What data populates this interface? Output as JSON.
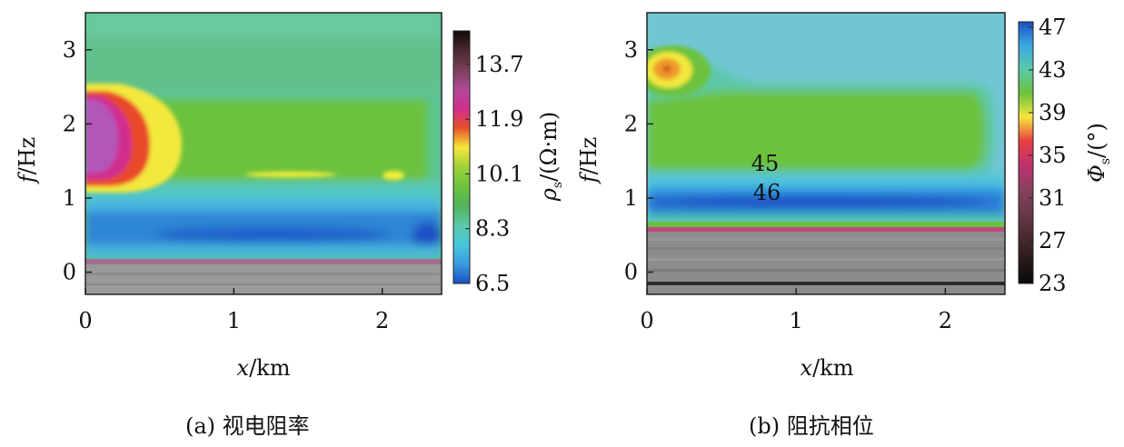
{
  "chart_data": [
    {
      "type": "heatmap",
      "panel_label": "(a)",
      "caption": "(a) 视电阻率",
      "xlabel_var": "x",
      "xlabel_unit": "/km",
      "ylabel_var": "f",
      "ylabel_unit": "/Hz",
      "x_ticks": [
        "0",
        "1",
        "2"
      ],
      "y_ticks": [
        "0",
        "1",
        "2",
        "3"
      ],
      "xlim": [
        0,
        2.4
      ],
      "ylim": [
        -0.3,
        3.5
      ],
      "colorbar": {
        "title_var": "ρ",
        "title_sub": "s",
        "title_unit": "/(Ω·m)",
        "ticks": [
          "6.5",
          "8.3",
          "10.1",
          "11.9",
          "13.7"
        ],
        "range": [
          6.5,
          14.8
        ],
        "colors": [
          "#1b4fc4",
          "#3a9be0",
          "#48c6dc",
          "#5cc8a8",
          "#52b35a",
          "#6cc23e",
          "#9fd23a",
          "#f5e83a",
          "#e85028",
          "#d02e8e",
          "#b04a9a",
          "#7a3f5a",
          "#4a2a30",
          "#120808"
        ]
      },
      "annotations": []
    },
    {
      "type": "heatmap",
      "panel_label": "(b)",
      "caption": "(b) 阻抗相位",
      "xlabel_var": "x",
      "xlabel_unit": "/km",
      "ylabel_var": "f",
      "ylabel_unit": "/Hz",
      "x_ticks": [
        "0",
        "1",
        "2"
      ],
      "y_ticks": [
        "0",
        "1",
        "2",
        "3"
      ],
      "xlim": [
        0,
        2.4
      ],
      "ylim": [
        -0.3,
        3.5
      ],
      "colorbar": {
        "title_var": "Φ",
        "title_sub": "s",
        "title_unit": "/(°)",
        "ticks": [
          "23",
          "27",
          "31",
          "35",
          "39",
          "43",
          "47"
        ],
        "range": [
          23,
          47.5
        ],
        "colors": [
          "#0a0a0a",
          "#2a1a1a",
          "#4a2a30",
          "#6a3a4a",
          "#8a4060",
          "#c03070",
          "#e84040",
          "#f5e63a",
          "#6cc23e",
          "#5cc8a8",
          "#3aa8e0",
          "#1b4fc4"
        ]
      },
      "annotations": [
        "45",
        "46"
      ]
    }
  ]
}
